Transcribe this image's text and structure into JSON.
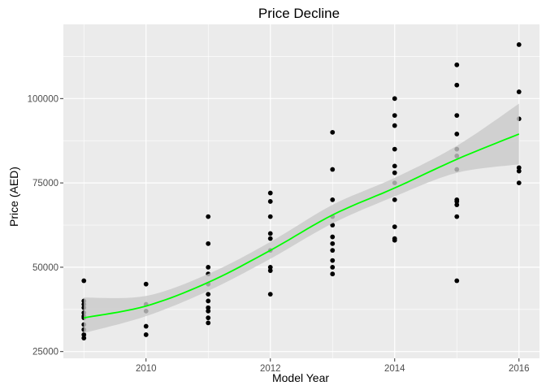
{
  "chart_data": {
    "type": "scatter",
    "title": "Price Decline",
    "xlabel": "Model Year",
    "ylabel": "Price (AED)",
    "xlim": [
      2008.67,
      2016.33
    ],
    "ylim": [
      23000,
      122000
    ],
    "x_ticks": [
      2010,
      2012,
      2014,
      2016
    ],
    "y_ticks": [
      25000,
      50000,
      75000,
      100000
    ],
    "x_tick_labels": [
      "2010",
      "2012",
      "2014",
      "2016"
    ],
    "y_tick_labels": [
      "25000",
      "50000",
      "75000",
      "100000"
    ],
    "grid": true,
    "legend": "none",
    "colors": {
      "panel": "#ebebeb",
      "grid_major": "#ffffff",
      "points": "#000000",
      "smooth_line": "#00ff00",
      "confidence_band": "#c9c9c9"
    },
    "points": [
      {
        "x": 2009,
        "y": 46000
      },
      {
        "x": 2009,
        "y": 40000
      },
      {
        "x": 2009,
        "y": 39000
      },
      {
        "x": 2009,
        "y": 38000
      },
      {
        "x": 2009,
        "y": 36500
      },
      {
        "x": 2009,
        "y": 35500
      },
      {
        "x": 2009,
        "y": 35000
      },
      {
        "x": 2009,
        "y": 33000
      },
      {
        "x": 2009,
        "y": 31500
      },
      {
        "x": 2009,
        "y": 30000
      },
      {
        "x": 2009,
        "y": 29000
      },
      {
        "x": 2010,
        "y": 45000
      },
      {
        "x": 2010,
        "y": 39000
      },
      {
        "x": 2010,
        "y": 37000
      },
      {
        "x": 2010,
        "y": 32500
      },
      {
        "x": 2010,
        "y": 30000
      },
      {
        "x": 2011,
        "y": 65000
      },
      {
        "x": 2011,
        "y": 57000
      },
      {
        "x": 2011,
        "y": 50000
      },
      {
        "x": 2011,
        "y": 48000
      },
      {
        "x": 2011,
        "y": 45000
      },
      {
        "x": 2011,
        "y": 42000
      },
      {
        "x": 2011,
        "y": 40000
      },
      {
        "x": 2011,
        "y": 38000
      },
      {
        "x": 2011,
        "y": 37000
      },
      {
        "x": 2011,
        "y": 35000
      },
      {
        "x": 2011,
        "y": 33500
      },
      {
        "x": 2012,
        "y": 72000
      },
      {
        "x": 2012,
        "y": 69500
      },
      {
        "x": 2012,
        "y": 65000
      },
      {
        "x": 2012,
        "y": 60000
      },
      {
        "x": 2012,
        "y": 58500
      },
      {
        "x": 2012,
        "y": 55000
      },
      {
        "x": 2012,
        "y": 50000
      },
      {
        "x": 2012,
        "y": 49000
      },
      {
        "x": 2012,
        "y": 42000
      },
      {
        "x": 2013,
        "y": 90000
      },
      {
        "x": 2013,
        "y": 79000
      },
      {
        "x": 2013,
        "y": 70000
      },
      {
        "x": 2013,
        "y": 65000
      },
      {
        "x": 2013,
        "y": 62500
      },
      {
        "x": 2013,
        "y": 59000
      },
      {
        "x": 2013,
        "y": 57000
      },
      {
        "x": 2013,
        "y": 55000
      },
      {
        "x": 2013,
        "y": 52000
      },
      {
        "x": 2013,
        "y": 50000
      },
      {
        "x": 2013,
        "y": 48000
      },
      {
        "x": 2014,
        "y": 100000
      },
      {
        "x": 2014,
        "y": 95000
      },
      {
        "x": 2014,
        "y": 92000
      },
      {
        "x": 2014,
        "y": 85000
      },
      {
        "x": 2014,
        "y": 80000
      },
      {
        "x": 2014,
        "y": 78000
      },
      {
        "x": 2014,
        "y": 75000
      },
      {
        "x": 2014,
        "y": 70000
      },
      {
        "x": 2014,
        "y": 62000
      },
      {
        "x": 2014,
        "y": 58500
      },
      {
        "x": 2014,
        "y": 58000
      },
      {
        "x": 2015,
        "y": 110000
      },
      {
        "x": 2015,
        "y": 104000
      },
      {
        "x": 2015,
        "y": 95000
      },
      {
        "x": 2015,
        "y": 89500
      },
      {
        "x": 2015,
        "y": 85000
      },
      {
        "x": 2015,
        "y": 83000
      },
      {
        "x": 2015,
        "y": 79000
      },
      {
        "x": 2015,
        "y": 70000
      },
      {
        "x": 2015,
        "y": 69500
      },
      {
        "x": 2015,
        "y": 68500
      },
      {
        "x": 2015,
        "y": 65000
      },
      {
        "x": 2015,
        "y": 46000
      },
      {
        "x": 2016,
        "y": 116000
      },
      {
        "x": 2016,
        "y": 102000
      },
      {
        "x": 2016,
        "y": 94000
      },
      {
        "x": 2016,
        "y": 79500
      },
      {
        "x": 2016,
        "y": 78500
      },
      {
        "x": 2016,
        "y": 75000
      }
    ],
    "smooth_fit": [
      {
        "x": 2009,
        "y": 35000,
        "lower": 30500,
        "upper": 41000
      },
      {
        "x": 2010,
        "y": 38500,
        "lower": 35500,
        "upper": 41500
      },
      {
        "x": 2011,
        "y": 45500,
        "lower": 43000,
        "upper": 48000
      },
      {
        "x": 2012,
        "y": 55000,
        "lower": 52500,
        "upper": 57500
      },
      {
        "x": 2013,
        "y": 65500,
        "lower": 63000,
        "upper": 68500
      },
      {
        "x": 2014,
        "y": 73500,
        "lower": 71000,
        "upper": 76500
      },
      {
        "x": 2015,
        "y": 82000,
        "lower": 78000,
        "upper": 86000
      },
      {
        "x": 2016,
        "y": 89500,
        "lower": 80500,
        "upper": 98500
      }
    ]
  }
}
